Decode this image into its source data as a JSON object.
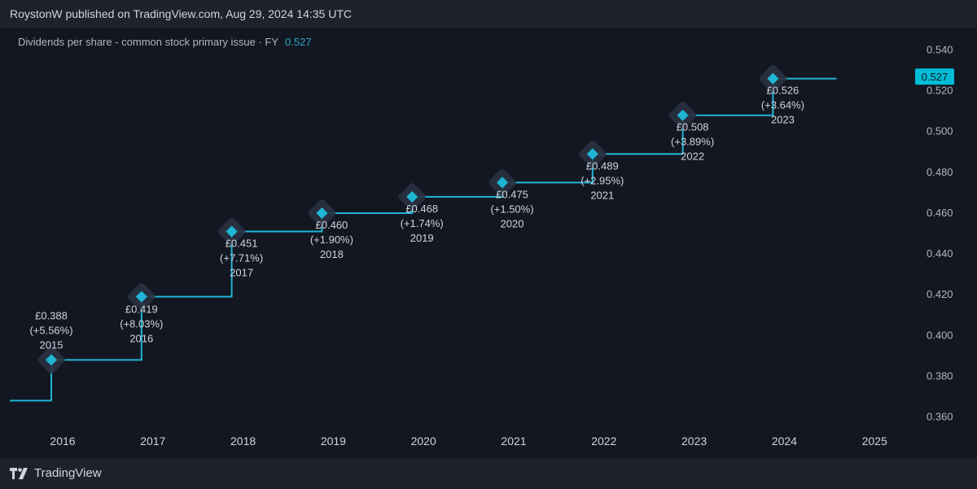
{
  "header": {
    "text": "RoystonW published on TradingView.com, Aug 29, 2024 14:35 UTC"
  },
  "legend": {
    "label": "Dividends per share - common stock primary issue · FY",
    "value": "0.527"
  },
  "footer": {
    "brand": "TradingView"
  },
  "colors": {
    "line": "#1fb5d4",
    "bg": "#131722",
    "text": "#d1d4dc",
    "axis_text": "#b2b5be",
    "badge": "#00bcd4"
  },
  "chart_data": {
    "type": "line",
    "title": "Dividends per share - common stock primary issue · FY",
    "x": [
      2015,
      2016,
      2017,
      2018,
      2019,
      2020,
      2021,
      2022,
      2023
    ],
    "values": [
      0.388,
      0.419,
      0.451,
      0.46,
      0.468,
      0.475,
      0.489,
      0.508,
      0.526
    ],
    "last_value": 0.527,
    "ylim": [
      0.353,
      0.547
    ],
    "y_ticks": [
      "0.360",
      "0.380",
      "0.400",
      "0.420",
      "0.440",
      "0.460",
      "0.480",
      "0.500",
      "0.520",
      "0.540"
    ],
    "x_ticks": [
      "2016",
      "2017",
      "2018",
      "2019",
      "2020",
      "2021",
      "2022",
      "2023",
      "2024",
      "2025"
    ],
    "points": [
      {
        "year": "2015",
        "value": 0.388,
        "price": "£0.388",
        "change": "(+5.56%)"
      },
      {
        "year": "2016",
        "value": 0.419,
        "price": "£0.419",
        "change": "(+8.03%)"
      },
      {
        "year": "2017",
        "value": 0.451,
        "price": "£0.451",
        "change": "(+7.71%)"
      },
      {
        "year": "2018",
        "value": 0.46,
        "price": "£0.460",
        "change": "(+1.90%)"
      },
      {
        "year": "2019",
        "value": 0.468,
        "price": "£0.468",
        "change": "(+1.74%)"
      },
      {
        "year": "2020",
        "value": 0.475,
        "price": "£0.475",
        "change": "(+1.50%)"
      },
      {
        "year": "2021",
        "value": 0.489,
        "price": "£0.489",
        "change": "(+2.95%)"
      },
      {
        "year": "2022",
        "value": 0.508,
        "price": "£0.508",
        "change": "(+3.89%)"
      },
      {
        "year": "2023",
        "value": 0.526,
        "price": "£0.526",
        "change": "(+3.64%)"
      }
    ],
    "badge": "0.527"
  }
}
